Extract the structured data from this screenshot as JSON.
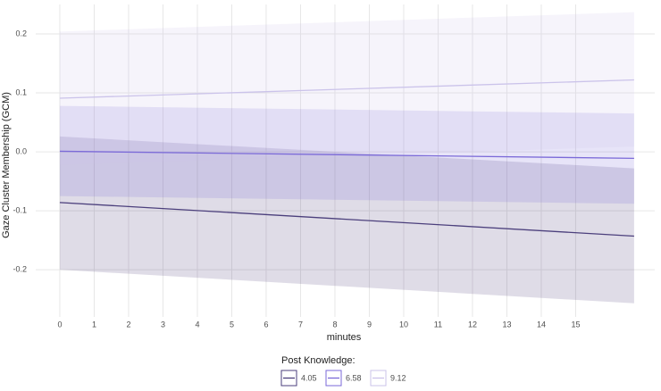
{
  "chart_data": {
    "type": "line",
    "x_label": "minutes",
    "y_label": "Gaze Cluster Membership (GCM)",
    "legend_title": "Post Knowledge:",
    "legend_position": "bottom",
    "grid": true,
    "x": [
      0,
      16.7
    ],
    "xlim": [
      -0.7,
      17.3
    ],
    "xticks": [
      0,
      1,
      2,
      3,
      4,
      5,
      6,
      7,
      8,
      9,
      10,
      11,
      12,
      13,
      14,
      15
    ],
    "ylim": [
      -0.28,
      0.25
    ],
    "yticks": [
      -0.2,
      -0.1,
      {
        "value": 0,
        "label": "0.0"
      },
      0.1,
      0.2
    ],
    "series": [
      {
        "name": "4.05",
        "color": "#4b3f7c",
        "values": [
          -0.086,
          -0.143
        ],
        "lower": [
          -0.2,
          -0.257
        ],
        "upper": [
          0.026,
          -0.028
        ]
      },
      {
        "name": "6.58",
        "color": "#7b6ad8",
        "values": [
          0.001,
          -0.011
        ],
        "lower": [
          -0.075,
          -0.088
        ],
        "upper": [
          0.078,
          0.065
        ]
      },
      {
        "name": "9.12",
        "color": "#cbc3ea",
        "values": [
          0.091,
          0.122
        ],
        "lower": [
          -0.022,
          0.009
        ],
        "upper": [
          0.204,
          0.237
        ]
      }
    ]
  }
}
